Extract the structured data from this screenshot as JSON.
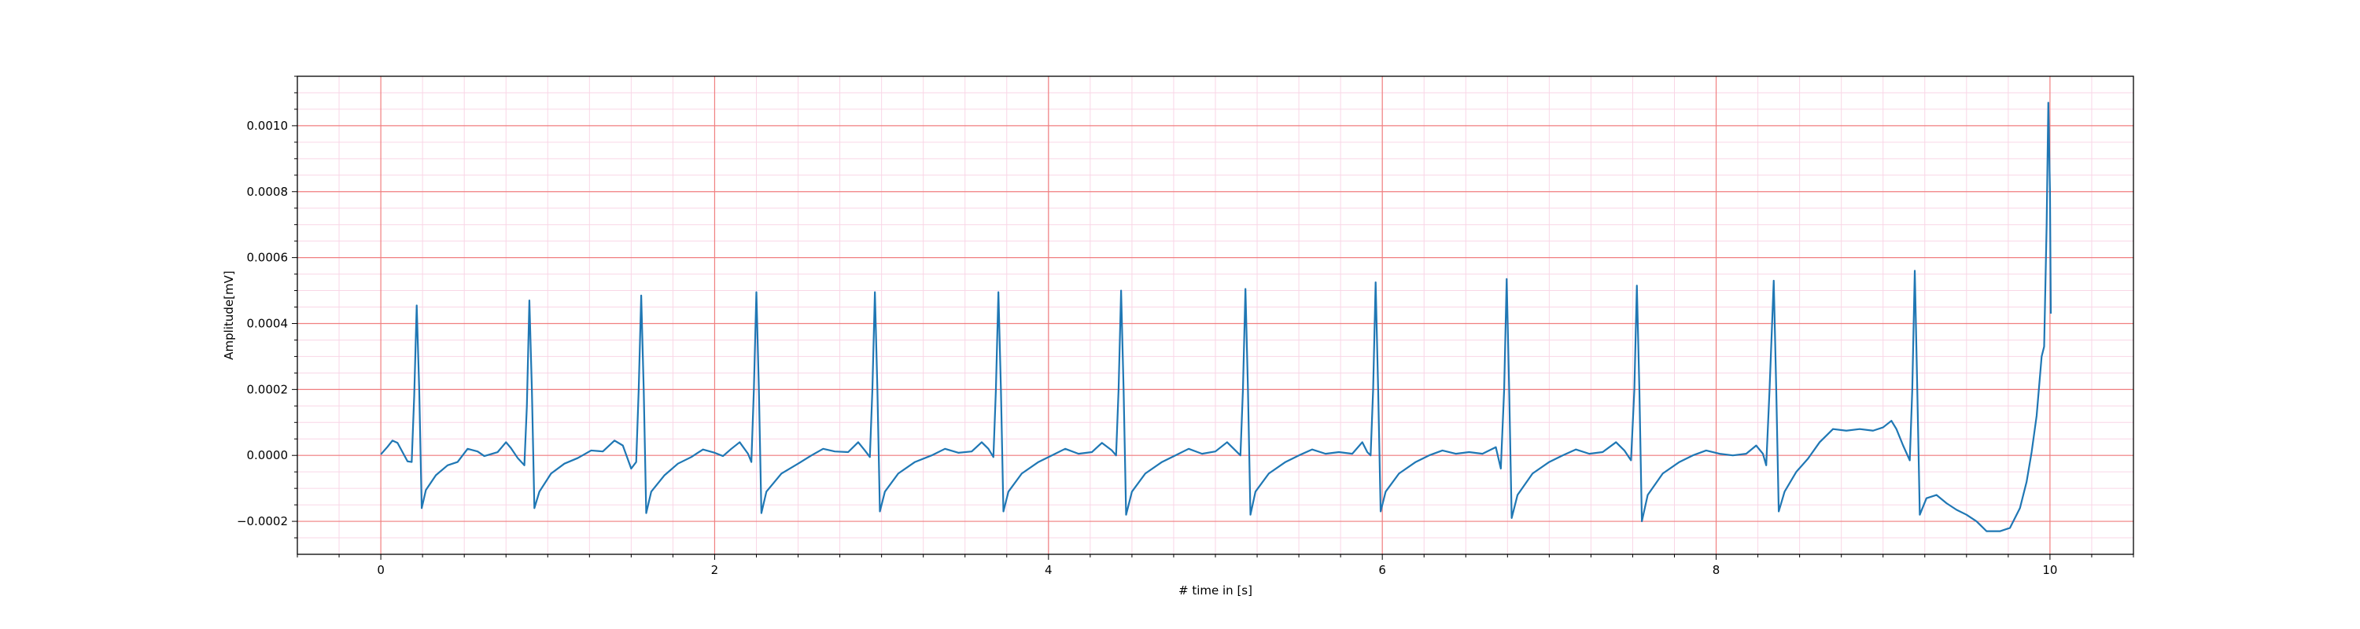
{
  "chart_data": {
    "type": "line",
    "title": "",
    "xlabel": "# time in [s]",
    "ylabel": "Amplitude[mV]",
    "xlim": [
      -0.5,
      10.5
    ],
    "ylim": [
      -0.0003,
      0.00115
    ],
    "x_ticks": [
      0,
      2,
      4,
      6,
      8,
      10
    ],
    "x_tick_labels": [
      "0",
      "2",
      "4",
      "6",
      "8",
      "10"
    ],
    "y_ticks": [
      -0.0002,
      0.0,
      0.0002,
      0.0004,
      0.0006,
      0.0008,
      0.001
    ],
    "y_tick_labels": [
      "−0.0002",
      "0.0000",
      "0.0002",
      "0.0004",
      "0.0006",
      "0.0008",
      "0.0010"
    ],
    "grid": {
      "major": true,
      "minor": true,
      "major_color": "#f08080",
      "minor_color": "#f9d6e6"
    },
    "line_color": "#1f77b4",
    "series": [
      {
        "values": [
          [
            0.0,
            3e-06
          ],
          [
            0.04,
            2.6e-05
          ],
          [
            0.07,
            4.5e-05
          ],
          [
            0.1,
            3.8e-05
          ],
          [
            0.13,
            1e-05
          ],
          [
            0.16,
            -1.8e-05
          ],
          [
            0.185,
            -2e-05
          ],
          [
            0.2,
            0.00018
          ],
          [
            0.215,
            0.000455
          ],
          [
            0.23,
            0.0002
          ],
          [
            0.245,
            -0.00016
          ],
          [
            0.27,
            -0.000105
          ],
          [
            0.33,
            -6e-05
          ],
          [
            0.4,
            -3e-05
          ],
          [
            0.46,
            -2e-05
          ],
          [
            0.52,
            2e-05
          ],
          [
            0.58,
            1.2e-05
          ],
          [
            0.62,
            -2e-06
          ],
          [
            0.7,
            1e-05
          ],
          [
            0.75,
            4e-05
          ],
          [
            0.78,
            2.2e-05
          ],
          [
            0.82,
            -8e-06
          ],
          [
            0.86,
            -3e-05
          ],
          [
            0.875,
            0.00015
          ],
          [
            0.89,
            0.00047
          ],
          [
            0.905,
            0.0002
          ],
          [
            0.92,
            -0.00016
          ],
          [
            0.95,
            -0.00011
          ],
          [
            1.02,
            -5.5e-05
          ],
          [
            1.1,
            -2.5e-05
          ],
          [
            1.18,
            -8e-06
          ],
          [
            1.26,
            1.5e-05
          ],
          [
            1.33,
            1.2e-05
          ],
          [
            1.4,
            4.5e-05
          ],
          [
            1.45,
            3e-05
          ],
          [
            1.5,
            -4e-05
          ],
          [
            1.53,
            -2e-05
          ],
          [
            1.545,
            0.0002
          ],
          [
            1.56,
            0.000485
          ],
          [
            1.575,
            0.0002
          ],
          [
            1.59,
            -0.000175
          ],
          [
            1.62,
            -0.00011
          ],
          [
            1.7,
            -6e-05
          ],
          [
            1.78,
            -2.5e-05
          ],
          [
            1.86,
            -5e-06
          ],
          [
            1.93,
            1.8e-05
          ],
          [
            2.0,
            8e-06
          ],
          [
            2.05,
            -2e-06
          ],
          [
            2.1,
            2e-05
          ],
          [
            2.15,
            4e-05
          ],
          [
            2.2,
            5e-06
          ],
          [
            2.22,
            -2e-05
          ],
          [
            2.235,
            0.0002
          ],
          [
            2.25,
            0.000495
          ],
          [
            2.265,
            0.0002
          ],
          [
            2.28,
            -0.000175
          ],
          [
            2.31,
            -0.00011
          ],
          [
            2.4,
            -5.5e-05
          ],
          [
            2.5,
            -2.5e-05
          ],
          [
            2.58,
            0.0
          ],
          [
            2.65,
            2e-05
          ],
          [
            2.72,
            1.2e-05
          ],
          [
            2.8,
            1e-05
          ],
          [
            2.86,
            4e-05
          ],
          [
            2.9,
            1.5e-05
          ],
          [
            2.93,
            -5e-06
          ],
          [
            2.945,
            0.0002
          ],
          [
            2.96,
            0.000495
          ],
          [
            2.975,
            0.0002
          ],
          [
            2.99,
            -0.00017
          ],
          [
            3.02,
            -0.00011
          ],
          [
            3.1,
            -5.5e-05
          ],
          [
            3.2,
            -2e-05
          ],
          [
            3.3,
            0.0
          ],
          [
            3.38,
            2e-05
          ],
          [
            3.46,
            8e-06
          ],
          [
            3.54,
            1.2e-05
          ],
          [
            3.6,
            4e-05
          ],
          [
            3.64,
            2e-05
          ],
          [
            3.67,
            -5e-06
          ],
          [
            3.685,
            0.0002
          ],
          [
            3.7,
            0.000495
          ],
          [
            3.715,
            0.0002
          ],
          [
            3.73,
            -0.00017
          ],
          [
            3.76,
            -0.00011
          ],
          [
            3.84,
            -5.5e-05
          ],
          [
            3.94,
            -2e-05
          ],
          [
            4.02,
            0.0
          ],
          [
            4.1,
            2e-05
          ],
          [
            4.18,
            5e-06
          ],
          [
            4.26,
            1e-05
          ],
          [
            4.32,
            3.8e-05
          ],
          [
            4.38,
            1.5e-05
          ],
          [
            4.405,
            0.0
          ],
          [
            4.42,
            0.0002
          ],
          [
            4.435,
            0.0005
          ],
          [
            4.45,
            0.0002
          ],
          [
            4.465,
            -0.00018
          ],
          [
            4.5,
            -0.00011
          ],
          [
            4.58,
            -5.5e-05
          ],
          [
            4.68,
            -2e-05
          ],
          [
            4.76,
            0.0
          ],
          [
            4.84,
            2e-05
          ],
          [
            4.92,
            5e-06
          ],
          [
            5.0,
            1.2e-05
          ],
          [
            5.07,
            4e-05
          ],
          [
            5.12,
            1.5e-05
          ],
          [
            5.15,
            0.0
          ],
          [
            5.165,
            0.0002
          ],
          [
            5.18,
            0.000505
          ],
          [
            5.195,
            0.0002
          ],
          [
            5.21,
            -0.00018
          ],
          [
            5.24,
            -0.00011
          ],
          [
            5.32,
            -5.5e-05
          ],
          [
            5.42,
            -2e-05
          ],
          [
            5.5,
            0.0
          ],
          [
            5.58,
            1.8e-05
          ],
          [
            5.66,
            5e-06
          ],
          [
            5.74,
            1e-05
          ],
          [
            5.82,
            5e-06
          ],
          [
            5.88,
            4e-05
          ],
          [
            5.91,
            1e-05
          ],
          [
            5.93,
            0.0
          ],
          [
            5.945,
            0.0002
          ],
          [
            5.96,
            0.000525
          ],
          [
            5.975,
            0.0002
          ],
          [
            5.99,
            -0.00017
          ],
          [
            6.02,
            -0.00011
          ],
          [
            6.1,
            -5.5e-05
          ],
          [
            6.2,
            -2e-05
          ],
          [
            6.28,
            0.0
          ],
          [
            6.36,
            1.5e-05
          ],
          [
            6.44,
            5e-06
          ],
          [
            6.52,
            1e-05
          ],
          [
            6.6,
            5e-06
          ],
          [
            6.68,
            2.5e-05
          ],
          [
            6.71,
            -4e-05
          ],
          [
            6.73,
            0.0002
          ],
          [
            6.745,
            0.000535
          ],
          [
            6.76,
            0.0002
          ],
          [
            6.775,
            -0.00019
          ],
          [
            6.81,
            -0.00012
          ],
          [
            6.9,
            -5.5e-05
          ],
          [
            7.0,
            -2e-05
          ],
          [
            7.08,
            0.0
          ],
          [
            7.16,
            1.8e-05
          ],
          [
            7.24,
            5e-06
          ],
          [
            7.32,
            1e-05
          ],
          [
            7.4,
            4e-05
          ],
          [
            7.45,
            1.5e-05
          ],
          [
            7.49,
            -1.5e-05
          ],
          [
            7.51,
            0.0002
          ],
          [
            7.525,
            0.000515
          ],
          [
            7.54,
            0.0002
          ],
          [
            7.555,
            -0.0002
          ],
          [
            7.59,
            -0.00012
          ],
          [
            7.68,
            -5.5e-05
          ],
          [
            7.78,
            -2e-05
          ],
          [
            7.86,
            0.0
          ],
          [
            7.94,
            1.5e-05
          ],
          [
            8.02,
            5e-06
          ],
          [
            8.1,
            0.0
          ],
          [
            8.18,
            5e-06
          ],
          [
            8.24,
            3e-05
          ],
          [
            8.28,
            5e-06
          ],
          [
            8.3,
            -3e-05
          ],
          [
            8.32,
            0.0002
          ],
          [
            8.345,
            0.00053
          ],
          [
            8.36,
            0.0002
          ],
          [
            8.375,
            -0.00017
          ],
          [
            8.41,
            -0.00011
          ],
          [
            8.48,
            -5e-05
          ],
          [
            8.55,
            -1e-05
          ],
          [
            8.62,
            4e-05
          ],
          [
            8.7,
            8e-05
          ],
          [
            8.78,
            7.5e-05
          ],
          [
            8.86,
            8e-05
          ],
          [
            8.94,
            7.5e-05
          ],
          [
            9.0,
            8.5e-05
          ],
          [
            9.05,
            0.000105
          ],
          [
            9.08,
            8e-05
          ],
          [
            9.12,
            3e-05
          ],
          [
            9.16,
            -1.5e-05
          ],
          [
            9.175,
            0.0002
          ],
          [
            9.19,
            0.00056
          ],
          [
            9.205,
            0.0002
          ],
          [
            9.22,
            -0.00018
          ],
          [
            9.26,
            -0.00013
          ],
          [
            9.32,
            -0.00012
          ],
          [
            9.38,
            -0.000145
          ],
          [
            9.44,
            -0.000165
          ],
          [
            9.5,
            -0.00018
          ],
          [
            9.56,
            -0.0002
          ],
          [
            9.62,
            -0.00023
          ],
          [
            9.7,
            -0.00023
          ],
          [
            9.76,
            -0.00022
          ],
          [
            9.82,
            -0.00016
          ],
          [
            9.86,
            -8e-05
          ],
          [
            9.89,
            1e-05
          ],
          [
            9.92,
            0.00012
          ],
          [
            9.95,
            0.0003
          ],
          [
            9.965,
            0.00033
          ],
          [
            9.98,
            0.0007
          ],
          [
            9.99,
            0.00107
          ],
          [
            10.0,
            0.0008
          ],
          [
            10.005,
            0.00043
          ]
        ]
      }
    ]
  }
}
